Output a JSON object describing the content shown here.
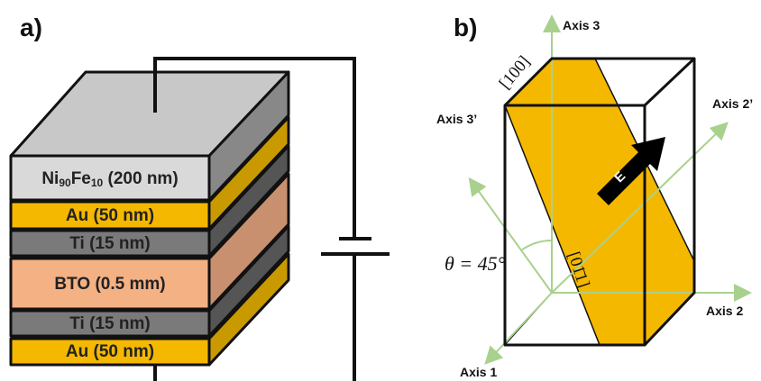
{
  "panel_a": {
    "label": "a)",
    "layers": [
      {
        "label": [
          "Ni",
          "90",
          "Fe",
          "10",
          " (200 nm)"
        ]
      },
      {
        "label": "Au (50 nm)"
      },
      {
        "label": "Ti (15 nm)"
      },
      {
        "label": "BTO (0.5 mm)"
      },
      {
        "label": "Ti (15 nm)"
      },
      {
        "label": "Au (50 nm)"
      }
    ]
  },
  "panel_b": {
    "label": "b)",
    "axis_3": "Axis 3",
    "axis_2_prime": "Axis 2’",
    "axis_3_prime": "Axis 3’",
    "axis_2": "Axis 2",
    "axis_1": "Axis 1",
    "direction_100": "[100]",
    "direction_011": "[01̄1]",
    "angle": "θ = 45°",
    "field": "E"
  }
}
